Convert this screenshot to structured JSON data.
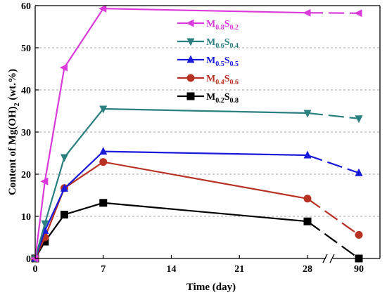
{
  "chart_data": {
    "type": "line",
    "xlabel": "Time (day)",
    "ylabel_main": "Content of Mg(OH)",
    "ylabel_sub": "2",
    "ylabel_tail": " (wt.%)",
    "x_ticks": [
      "0",
      "7",
      "14",
      "21",
      "28",
      "90"
    ],
    "y_ticks": [
      "0",
      "10",
      "20",
      "30",
      "40",
      "50",
      "60"
    ],
    "ylim": [
      0,
      60
    ],
    "axis_break": "between 28 and 90",
    "legend_position": "top-right",
    "grid": "horizontal dashed",
    "series": [
      {
        "key": "m08",
        "label_a": "M",
        "sub_a": "0.8",
        "label_b": "S",
        "sub_b": "0.2",
        "color": "#d93ad9",
        "marker": "triangle-left",
        "x": [
          0,
          1,
          3,
          7,
          28,
          90
        ],
        "y": [
          0,
          18.3,
          45.3,
          59.3,
          58.3,
          58.2
        ]
      },
      {
        "key": "m06",
        "label_a": "M",
        "sub_a": "0.6",
        "label_b": "S",
        "sub_b": "0.4",
        "color": "#2a7f7f",
        "marker": "triangle-down",
        "x": [
          0,
          1,
          3,
          7,
          28,
          90
        ],
        "y": [
          0,
          8.3,
          24.0,
          35.5,
          34.5,
          33.2
        ]
      },
      {
        "key": "m05",
        "label_a": "M",
        "sub_a": "0.5",
        "label_b": "S",
        "sub_b": "0.5",
        "color": "#1a1adb",
        "marker": "triangle-up",
        "x": [
          0,
          1,
          3,
          7,
          28,
          90
        ],
        "y": [
          0,
          6.6,
          16.6,
          25.4,
          24.5,
          20.3
        ]
      },
      {
        "key": "m04",
        "label_a": "M",
        "sub_a": "0.4",
        "label_b": "S",
        "sub_b": "0.6",
        "color": "#b83224",
        "marker": "circle",
        "x": [
          0,
          1,
          3,
          7,
          28,
          90
        ],
        "y": [
          0,
          5.0,
          16.7,
          22.9,
          14.2,
          5.6
        ]
      },
      {
        "key": "m02",
        "label_a": "M",
        "sub_a": "0.2",
        "label_b": "S",
        "sub_b": "0.8",
        "color": "#000000",
        "marker": "square",
        "x": [
          0,
          1,
          3,
          7,
          28,
          90
        ],
        "y": [
          0,
          4.0,
          10.4,
          13.2,
          8.8,
          0.0
        ]
      }
    ]
  }
}
